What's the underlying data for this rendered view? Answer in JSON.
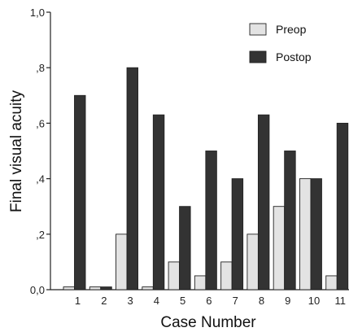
{
  "chart_data": {
    "type": "bar",
    "xlabel": "Case Number",
    "ylabel": "Final visual acuity",
    "categories": [
      "1",
      "2",
      "3",
      "4",
      "5",
      "6",
      "7",
      "8",
      "9",
      "10",
      "11"
    ],
    "series": [
      {
        "name": "Preop",
        "color": "#e3e3e3",
        "values": [
          0.01,
          0.01,
          0.2,
          0.01,
          0.1,
          0.05,
          0.1,
          0.2,
          0.3,
          0.4,
          0.05
        ]
      },
      {
        "name": "Postop",
        "color": "#333333",
        "values": [
          0.7,
          0.01,
          0.8,
          0.63,
          0.3,
          0.5,
          0.4,
          0.63,
          0.5,
          0.4,
          0.6
        ]
      }
    ],
    "ylim": [
      0,
      1.0
    ],
    "yticks": [
      {
        "value": 0,
        "label": "0,0"
      },
      {
        "value": 0.2,
        "label": ",2"
      },
      {
        "value": 0.4,
        "label": ",4"
      },
      {
        "value": 0.6,
        "label": ",6"
      },
      {
        "value": 0.8,
        "label": ",8"
      },
      {
        "value": 1.0,
        "label": "1,0"
      }
    ],
    "grid": false,
    "legend": "top-right"
  }
}
